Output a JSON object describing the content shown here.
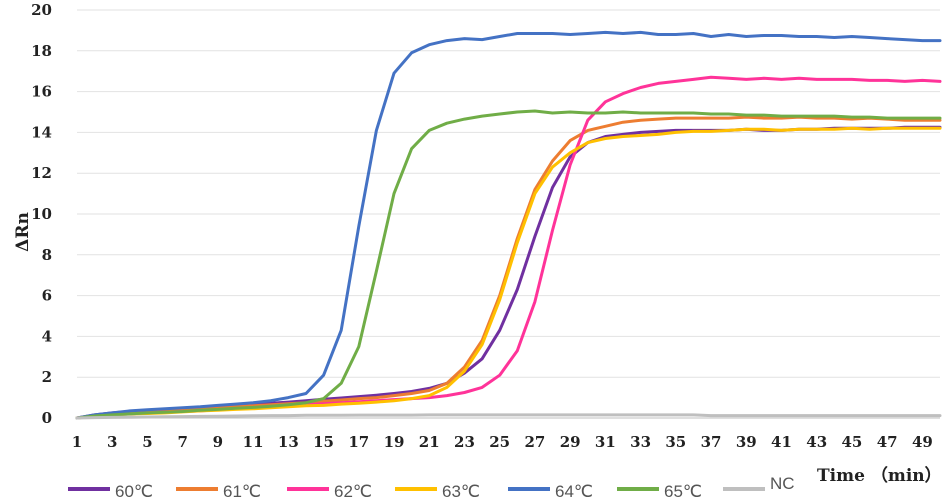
{
  "chart_data": {
    "type": "line",
    "xlabel": "Time （min）",
    "ylabel": "ΔRn",
    "xlim": [
      1,
      50
    ],
    "ylim": [
      0,
      20
    ],
    "x_ticks": [
      "1",
      "3",
      "5",
      "7",
      "9",
      "11",
      "13",
      "15",
      "17",
      "19",
      "21",
      "23",
      "25",
      "27",
      "29",
      "31",
      "33",
      "35",
      "37",
      "39",
      "41",
      "43",
      "45",
      "47",
      "49"
    ],
    "y_ticks": [
      "0",
      "2",
      "4",
      "6",
      "8",
      "10",
      "12",
      "14",
      "16",
      "18",
      "20"
    ],
    "grid": "horizontal",
    "legend_position": "bottom-left",
    "colors": {
      "60℃": "#7030a0",
      "61℃": "#ed7d31",
      "62℃": "#ff3399",
      "63℃": "#ffc000",
      "64℃": "#4472c4",
      "65℃": "#70ad47",
      "NC": "#bfbfbf"
    },
    "x": [
      1,
      2,
      3,
      4,
      5,
      6,
      7,
      8,
      9,
      10,
      11,
      12,
      13,
      14,
      15,
      16,
      17,
      18,
      19,
      20,
      21,
      22,
      23,
      24,
      25,
      26,
      27,
      28,
      29,
      30,
      31,
      32,
      33,
      34,
      35,
      36,
      37,
      38,
      39,
      40,
      41,
      42,
      43,
      44,
      45,
      46,
      47,
      48,
      49,
      50
    ],
    "series": [
      {
        "name": "60℃",
        "values": [
          0,
          0.15,
          0.25,
          0.32,
          0.38,
          0.42,
          0.48,
          0.52,
          0.58,
          0.62,
          0.68,
          0.72,
          0.78,
          0.85,
          0.92,
          0.98,
          1.05,
          1.12,
          1.2,
          1.3,
          1.45,
          1.7,
          2.2,
          2.9,
          4.3,
          6.3,
          8.9,
          11.3,
          12.8,
          13.5,
          13.8,
          13.9,
          14.0,
          14.05,
          14.1,
          14.1,
          14.1,
          14.1,
          14.15,
          14.1,
          14.1,
          14.15,
          14.15,
          14.2,
          14.2,
          14.2,
          14.2,
          14.25,
          14.25,
          14.25
        ]
      },
      {
        "name": "61℃",
        "values": [
          0,
          0.12,
          0.2,
          0.25,
          0.3,
          0.35,
          0.4,
          0.45,
          0.5,
          0.55,
          0.6,
          0.65,
          0.7,
          0.75,
          0.82,
          0.88,
          0.95,
          1.0,
          1.1,
          1.2,
          1.35,
          1.7,
          2.5,
          3.8,
          6.0,
          8.8,
          11.2,
          12.6,
          13.6,
          14.1,
          14.3,
          14.5,
          14.6,
          14.65,
          14.7,
          14.7,
          14.7,
          14.7,
          14.75,
          14.7,
          14.7,
          14.75,
          14.7,
          14.7,
          14.65,
          14.7,
          14.65,
          14.6,
          14.6,
          14.6
        ]
      },
      {
        "name": "62℃",
        "values": [
          0,
          0.1,
          0.15,
          0.2,
          0.25,
          0.28,
          0.32,
          0.35,
          0.4,
          0.45,
          0.5,
          0.55,
          0.6,
          0.65,
          0.7,
          0.75,
          0.8,
          0.85,
          0.9,
          0.95,
          1.0,
          1.1,
          1.25,
          1.5,
          2.1,
          3.3,
          5.7,
          9.2,
          12.4,
          14.6,
          15.5,
          15.9,
          16.2,
          16.4,
          16.5,
          16.6,
          16.7,
          16.65,
          16.6,
          16.65,
          16.6,
          16.65,
          16.6,
          16.6,
          16.6,
          16.55,
          16.55,
          16.5,
          16.55,
          16.5
        ]
      },
      {
        "name": "63℃",
        "values": [
          0,
          0.1,
          0.15,
          0.2,
          0.22,
          0.25,
          0.3,
          0.35,
          0.38,
          0.42,
          0.45,
          0.5,
          0.55,
          0.6,
          0.62,
          0.68,
          0.72,
          0.78,
          0.85,
          0.95,
          1.1,
          1.5,
          2.3,
          3.6,
          5.8,
          8.6,
          11.0,
          12.3,
          13.0,
          13.5,
          13.7,
          13.8,
          13.85,
          13.9,
          14.0,
          14.05,
          14.05,
          14.1,
          14.15,
          14.15,
          14.1,
          14.15,
          14.15,
          14.15,
          14.2,
          14.15,
          14.2,
          14.2,
          14.2,
          14.2
        ]
      },
      {
        "name": "64℃",
        "values": [
          0,
          0.15,
          0.25,
          0.35,
          0.4,
          0.45,
          0.5,
          0.55,
          0.62,
          0.68,
          0.75,
          0.85,
          1.0,
          1.2,
          2.1,
          4.3,
          9.4,
          14.1,
          16.9,
          17.9,
          18.3,
          18.5,
          18.6,
          18.55,
          18.7,
          18.85,
          18.85,
          18.85,
          18.8,
          18.85,
          18.9,
          18.85,
          18.9,
          18.8,
          18.8,
          18.85,
          18.7,
          18.8,
          18.7,
          18.75,
          18.75,
          18.7,
          18.7,
          18.65,
          18.7,
          18.65,
          18.6,
          18.55,
          18.5,
          18.5
        ]
      },
      {
        "name": "65℃",
        "values": [
          0,
          0.1,
          0.15,
          0.2,
          0.25,
          0.28,
          0.32,
          0.38,
          0.42,
          0.48,
          0.52,
          0.58,
          0.65,
          0.75,
          0.95,
          1.7,
          3.5,
          7.2,
          11.0,
          13.2,
          14.1,
          14.45,
          14.65,
          14.8,
          14.9,
          15.0,
          15.05,
          14.95,
          15.0,
          14.95,
          14.95,
          15.0,
          14.95,
          14.95,
          14.95,
          14.95,
          14.9,
          14.9,
          14.85,
          14.85,
          14.8,
          14.8,
          14.8,
          14.8,
          14.75,
          14.75,
          14.7,
          14.7,
          14.7,
          14.7
        ]
      },
      {
        "name": "NC",
        "values": [
          0,
          0.02,
          0.03,
          0.04,
          0.05,
          0.06,
          0.07,
          0.08,
          0.09,
          0.1,
          0.11,
          0.12,
          0.12,
          0.13,
          0.13,
          0.13,
          0.14,
          0.14,
          0.14,
          0.14,
          0.15,
          0.15,
          0.15,
          0.15,
          0.15,
          0.15,
          0.15,
          0.15,
          0.15,
          0.15,
          0.15,
          0.15,
          0.15,
          0.15,
          0.15,
          0.15,
          0.12,
          0.12,
          0.12,
          0.12,
          0.12,
          0.12,
          0.12,
          0.12,
          0.12,
          0.12,
          0.12,
          0.12,
          0.12,
          0.12
        ]
      }
    ]
  }
}
